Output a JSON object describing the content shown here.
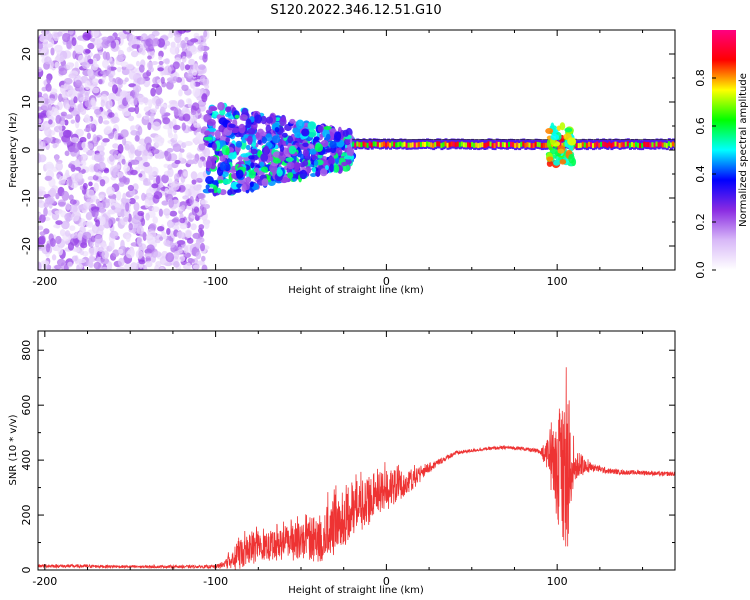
{
  "title": "S120.2022.346.12.51.G10",
  "chart_data": [
    {
      "type": "heatmap",
      "xlabel": "Height of straight line (km)",
      "ylabel": "Frequency (Hz)",
      "xlim": [
        -204,
        169
      ],
      "ylim": [
        -25,
        25
      ],
      "xticks": [
        -200,
        -100,
        0,
        100
      ],
      "yticks": [
        -20,
        -10,
        0,
        10,
        20
      ],
      "colorbar": {
        "label": "Normalized spectral amplitude",
        "range": [
          0.0,
          1.0
        ],
        "ticks": [
          0.0,
          0.2,
          0.4,
          0.6,
          0.8
        ],
        "colormap": [
          "#ffffff",
          "#d8b8f8",
          "#8a2be2",
          "#0000ff",
          "#00ffff",
          "#00ff00",
          "#ffff00",
          "#ff0000",
          "#ff0080"
        ]
      },
      "regions": [
        {
          "x_range": [
            -204,
            -105
          ],
          "freq_range": [
            -25,
            25
          ],
          "amplitude": "0.05-0.25",
          "pattern": "diffuse"
        },
        {
          "x_range": [
            -105,
            -20
          ],
          "freq_range": [
            -10,
            10
          ],
          "amplitude": "0.2-0.6",
          "pattern": "clustered"
        },
        {
          "x_range": [
            -20,
            169
          ],
          "freq_range": [
            -1,
            2
          ],
          "amplitude": "0.6-1.0",
          "pattern": "band near 1 Hz"
        },
        {
          "x_range": [
            95,
            110
          ],
          "freq_range": [
            -3,
            5
          ],
          "amplitude": "0.5-0.9",
          "pattern": "disturbance"
        }
      ]
    },
    {
      "type": "line",
      "xlabel": "Height of straight line (km)",
      "ylabel": "SNR (10 * v/v)",
      "xlim": [
        -204,
        169
      ],
      "ylim": [
        0,
        870
      ],
      "xticks": [
        -200,
        -100,
        0,
        100
      ],
      "yticks": [
        0,
        200,
        400,
        600,
        800
      ],
      "color": "#ee3333",
      "series": [
        {
          "name": "SNR",
          "x": [
            -204,
            -180,
            -150,
            -120,
            -100,
            -95,
            -90,
            -85,
            -80,
            -70,
            -60,
            -50,
            -40,
            -30,
            -20,
            -10,
            0,
            10,
            20,
            30,
            40,
            50,
            60,
            70,
            80,
            90,
            95,
            100,
            103,
            105,
            107,
            110,
            120,
            130,
            140,
            150,
            160,
            169
          ],
          "y": [
            15,
            14,
            12,
            12,
            12,
            20,
            40,
            70,
            85,
            90,
            100,
            110,
            130,
            170,
            220,
            260,
            300,
            320,
            350,
            390,
            425,
            435,
            442,
            446,
            442,
            430,
            420,
            380,
            360,
            350,
            380,
            400,
            375,
            360,
            355,
            355,
            350,
            350
          ],
          "noise": [
            6,
            6,
            5,
            5,
            6,
            15,
            35,
            55,
            60,
            50,
            55,
            70,
            85,
            100,
            90,
            80,
            70,
            50,
            25,
            12,
            8,
            6,
            6,
            6,
            6,
            10,
            60,
            200,
            250,
            300,
            200,
            60,
            15,
            10,
            8,
            8,
            8,
            8
          ]
        }
      ]
    }
  ]
}
